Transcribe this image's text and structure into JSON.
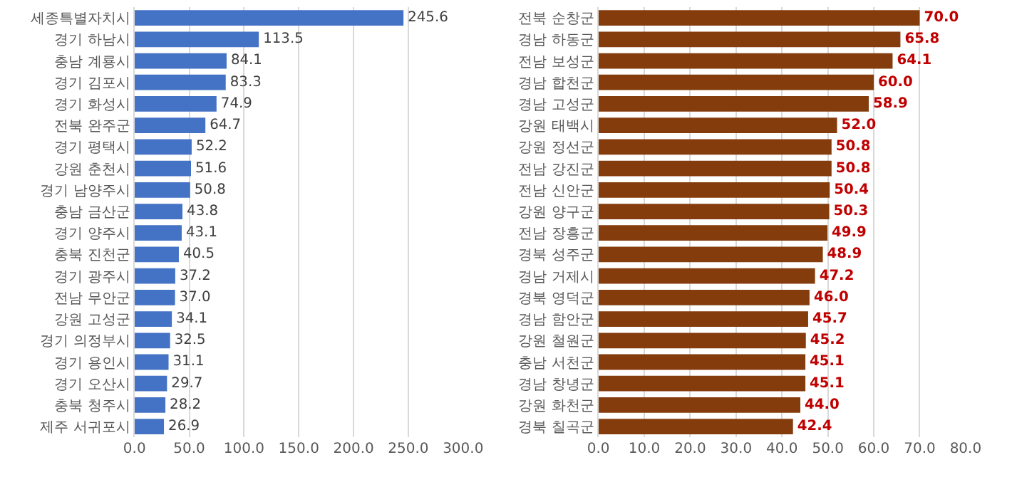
{
  "chart_data": [
    {
      "type": "bar",
      "orientation": "horizontal",
      "grid": "x",
      "categories": [
        "세종특별자치시",
        "경기 하남시",
        "충남 계룡시",
        "경기 김포시",
        "경기 화성시",
        "전북 완주군",
        "경기 평택시",
        "강원 춘천시",
        "경기 남양주시",
        "충남 금산군",
        "경기 양주시",
        "충북 진천군",
        "경기 광주시",
        "전남 무안군",
        "강원 고성군",
        "경기 의정부시",
        "경기 용인시",
        "경기 오산시",
        "충북 청주시",
        "제주 서귀포시"
      ],
      "series": [
        {
          "color": "#4472c4",
          "values": [
            245.6,
            113.5,
            84.1,
            83.3,
            74.9,
            64.7,
            52.2,
            51.6,
            50.8,
            43.8,
            43.1,
            40.5,
            37.2,
            37.0,
            34.1,
            32.5,
            31.1,
            29.7,
            28.2,
            26.9
          ],
          "value_labels": [
            "245.6",
            "113.5",
            "84.1",
            "83.3",
            "74.9",
            "64.7",
            "52.2",
            "51.6",
            "50.8",
            "43.8",
            "43.1",
            "40.5",
            "37.2",
            "37.0",
            "34.1",
            "32.5",
            "31.1",
            "29.7",
            "28.2",
            "26.9"
          ]
        }
      ],
      "xlim": [
        0,
        300
      ],
      "xticks": [
        {
          "value": 0,
          "label": "0.0"
        },
        {
          "value": 50,
          "label": "50.0"
        },
        {
          "value": 100,
          "label": "100.0"
        },
        {
          "value": 150,
          "label": "150.0"
        },
        {
          "value": 200,
          "label": "200.0"
        },
        {
          "value": 250,
          "label": "250.0"
        },
        {
          "value": 300,
          "label": "300.0"
        }
      ]
    },
    {
      "type": "bar",
      "orientation": "horizontal",
      "grid": "x",
      "categories": [
        "전북 순창군",
        "경남 하동군",
        "전남 보성군",
        "경남 합천군",
        "경남 고성군",
        "강원 태백시",
        "강원 정선군",
        "전남 강진군",
        "전남 신안군",
        "강원 양구군",
        "전남 장흥군",
        "경북 성주군",
        "경남 거제시",
        "경북 영덕군",
        "경남 함안군",
        "강원 철원군",
        "충남 서천군",
        "경남 창녕군",
        "강원 화천군",
        "경북 칠곡군"
      ],
      "series": [
        {
          "color": "#843c0c",
          "values": [
            70.0,
            65.8,
            64.1,
            60.0,
            58.9,
            52.0,
            50.8,
            50.8,
            50.4,
            50.3,
            49.9,
            48.9,
            47.2,
            46.0,
            45.7,
            45.2,
            45.1,
            45.1,
            44.0,
            42.4
          ],
          "value_labels": [
            "70.0",
            "65.8",
            "64.1",
            "60.0",
            "58.9",
            "52.0",
            "50.8",
            "50.8",
            "50.4",
            "50.3",
            "49.9",
            "48.9",
            "47.2",
            "46.0",
            "45.7",
            "45.2",
            "45.1",
            "45.1",
            "44.0",
            "42.4"
          ]
        }
      ],
      "xlim": [
        0,
        80
      ],
      "xticks": [
        {
          "value": 0,
          "label": "0.0"
        },
        {
          "value": 10,
          "label": "10.0"
        },
        {
          "value": 20,
          "label": "20.0"
        },
        {
          "value": 30,
          "label": "30.0"
        },
        {
          "value": 40,
          "label": "40.0"
        },
        {
          "value": 50,
          "label": "50.0"
        },
        {
          "value": 60,
          "label": "60.0"
        },
        {
          "value": 70,
          "label": "70.0"
        },
        {
          "value": 80,
          "label": "80.0"
        }
      ]
    }
  ]
}
